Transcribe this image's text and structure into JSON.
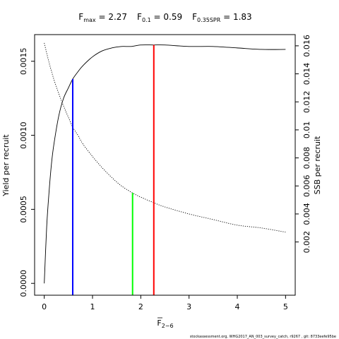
{
  "chart_data": {
    "type": "line",
    "title_parts": [
      {
        "main": "F",
        "sub": "max",
        "value": "= 2.27"
      },
      {
        "main": "F",
        "sub": "0.1",
        "value": "= 0.59"
      },
      {
        "main": "F",
        "sub": "0.35SPR",
        "value": "= 1.83"
      }
    ],
    "xlabel_main": "F",
    "xlabel_sub": "2−6",
    "ylabel_left": "Yield per recruit",
    "ylabel_right": "SSB per recruit",
    "footnote": "stockassessment.org, WHG2017_AN_003_survey_catch, r9267 , git: 8733eefe95be",
    "xlim": [
      -0.2,
      5.2
    ],
    "ylim_left": [
      -8e-05,
      0.00168
    ],
    "ylim_right": [
      -0.0018,
      0.0168
    ],
    "x_ticks": [
      {
        "value": 0,
        "label": "0"
      },
      {
        "value": 1,
        "label": "1"
      },
      {
        "value": 2,
        "label": "2"
      },
      {
        "value": 3,
        "label": "3"
      },
      {
        "value": 4,
        "label": "4"
      },
      {
        "value": 5,
        "label": "5"
      }
    ],
    "y_left_ticks": [
      {
        "value": 0,
        "label": "0.0000"
      },
      {
        "value": 0.0005,
        "label": "0.0005"
      },
      {
        "value": 0.001,
        "label": "0.0010"
      },
      {
        "value": 0.0015,
        "label": "0.0015"
      }
    ],
    "y_right_ticks": [
      {
        "value": 0.002,
        "label": "0.002"
      },
      {
        "value": 0.004,
        "label": "0.004"
      },
      {
        "value": 0.006,
        "label": "0.006"
      },
      {
        "value": 0.008,
        "label": "0.008"
      },
      {
        "value": 0.01,
        "label": "0.01"
      },
      {
        "value": 0.012,
        "label": "0.012"
      },
      {
        "value": 0.014,
        "label": "0.014"
      },
      {
        "value": 0.016,
        "label": "0.016"
      }
    ],
    "series": [
      {
        "axis": "left",
        "style": "solid",
        "color": "#000000",
        "x": [
          0,
          0.05,
          0.1,
          0.15,
          0.2,
          0.3,
          0.4,
          0.5,
          0.59,
          0.7,
          0.8,
          1.0,
          1.2,
          1.4,
          1.6,
          1.8,
          2.0,
          2.27,
          2.5,
          3.0,
          3.5,
          4.0,
          4.5,
          5.0
        ],
        "y": [
          0,
          0.00038,
          0.00062,
          0.00081,
          0.00094,
          0.00113,
          0.00125,
          0.00132,
          0.00138,
          0.00143,
          0.00147,
          0.00153,
          0.00157,
          0.00159,
          0.0016,
          0.0016,
          0.00161,
          0.00161,
          0.00161,
          0.0016,
          0.0016,
          0.00159,
          0.00158,
          0.00158
        ]
      },
      {
        "axis": "right",
        "style": "dotted",
        "color": "#000000",
        "x": [
          0,
          0.1,
          0.2,
          0.3,
          0.4,
          0.5,
          0.59,
          0.7,
          0.8,
          1.0,
          1.2,
          1.4,
          1.6,
          1.83,
          2.0,
          2.27,
          2.5,
          3.0,
          3.5,
          4.0,
          4.5,
          5.0
        ],
        "y": [
          0.0162,
          0.0148,
          0.0136,
          0.0126,
          0.0117,
          0.0109,
          0.0102,
          0.0096,
          0.009,
          0.0081,
          0.0073,
          0.0066,
          0.006,
          0.0055,
          0.0052,
          0.0048,
          0.0045,
          0.004,
          0.0036,
          0.0032,
          0.003,
          0.0027
        ]
      }
    ],
    "reference_lines": [
      {
        "x": 0.59,
        "y_top": 0.00138,
        "axis": "left",
        "color": "#0000ff"
      },
      {
        "x": 1.83,
        "y_top": 0.0055,
        "axis": "right",
        "color": "#00ff00"
      },
      {
        "x": 2.27,
        "y_top": 0.00161,
        "axis": "left",
        "color": "#ff0000"
      }
    ],
    "grid": false,
    "legend": "none"
  }
}
